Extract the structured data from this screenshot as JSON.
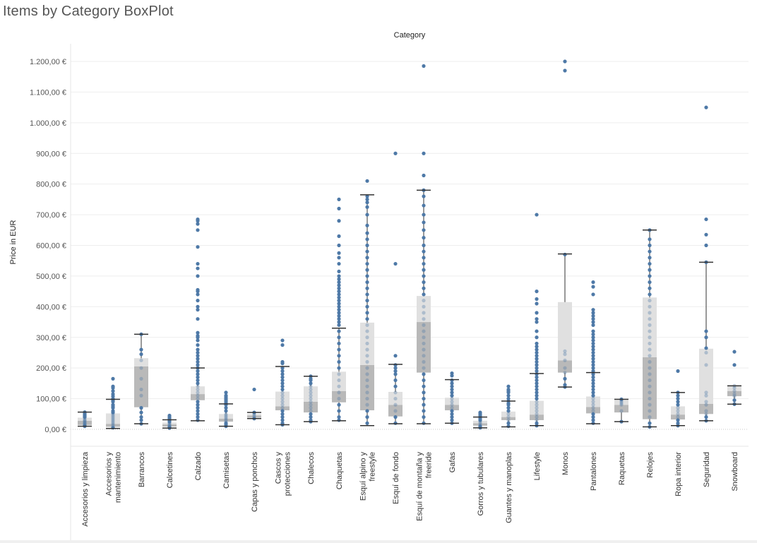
{
  "page": {
    "title": "Items by Category BoxPlot"
  },
  "chart_data": {
    "type": "boxplot",
    "title": "Items by Category BoxPlot",
    "column_header": "Category",
    "ylabel": "Price in EUR",
    "ylim": [
      0,
      1260
    ],
    "yticks": [
      0,
      100,
      200,
      300,
      400,
      500,
      600,
      700,
      800,
      900,
      1000,
      1100,
      1200
    ],
    "ytick_labels": [
      "0,00 €",
      "100,00 €",
      "200,00 €",
      "300,00 €",
      "400,00 €",
      "500,00 €",
      "600,00 €",
      "700,00 €",
      "800,00 €",
      "900,00 €",
      "1.000,00 €",
      "1.100,00 €",
      "1.200,00 €"
    ],
    "grid": true,
    "colors": {
      "points": "#4e79a7",
      "box_outer": "#e0e0e0",
      "box_inner": "#b9b9b9",
      "whisker": "#333333",
      "grid": "#eeeeee"
    },
    "categories": [
      {
        "label": [
          "Accesorios y limpieza"
        ],
        "min": 10,
        "q1": 14,
        "median": 28,
        "q3": 38,
        "max": 56,
        "points": [
          56,
          52,
          48,
          45,
          42,
          40,
          35,
          30,
          28,
          25,
          22,
          20,
          18,
          15,
          12,
          10
        ]
      },
      {
        "label": [
          "Accesorios y",
          "mantenimiento"
        ],
        "min": 3,
        "q1": 8,
        "median": 18,
        "q3": 52,
        "max": 98,
        "points": [
          165,
          140,
          135,
          125,
          115,
          108,
          100,
          95,
          90,
          80,
          75,
          70,
          60,
          55,
          50,
          45,
          40,
          35,
          30,
          25,
          20,
          15,
          10,
          5
        ]
      },
      {
        "label": [
          "Barrancos"
        ],
        "min": 18,
        "q1": 72,
        "median": 205,
        "q3": 232,
        "max": 310,
        "points": [
          310,
          260,
          245,
          225,
          200,
          165,
          130,
          110,
          70,
          55,
          40,
          30,
          18
        ]
      },
      {
        "label": [
          "Calcetines"
        ],
        "min": 4,
        "q1": 9,
        "median": 16,
        "q3": 22,
        "max": 31,
        "points": [
          45,
          40,
          35,
          31,
          28,
          25,
          22,
          18,
          15,
          12,
          10,
          7,
          4
        ]
      },
      {
        "label": [
          "Calzado"
        ],
        "min": 28,
        "q1": 95,
        "median": 115,
        "q3": 140,
        "max": 200,
        "points": [
          685,
          680,
          670,
          650,
          595,
          540,
          525,
          500,
          455,
          450,
          440,
          420,
          400,
          390,
          360,
          315,
          305,
          300,
          290,
          275,
          260,
          250,
          240,
          230,
          220,
          210,
          200,
          190,
          180,
          170,
          160,
          150,
          140,
          130,
          120,
          110,
          100,
          90,
          80,
          70,
          60,
          50,
          40,
          30
        ]
      },
      {
        "label": [
          "Camisetas"
        ],
        "min": 10,
        "q1": 25,
        "median": 35,
        "q3": 50,
        "max": 83,
        "points": [
          120,
          110,
          105,
          100,
          95,
          90,
          85,
          80,
          70,
          60,
          50,
          45,
          40,
          35,
          30,
          25,
          20,
          15,
          10
        ]
      },
      {
        "label": [
          "Capas y ponchos"
        ],
        "min": 35,
        "q1": 38,
        "median": 45,
        "q3": 50,
        "max": 55,
        "points": [
          130,
          55,
          50,
          45,
          40,
          35
        ]
      },
      {
        "label": [
          "Cascos y",
          "protecciones"
        ],
        "min": 15,
        "q1": 62,
        "median": 75,
        "q3": 123,
        "max": 205,
        "points": [
          290,
          275,
          220,
          215,
          200,
          190,
          180,
          170,
          160,
          150,
          140,
          130,
          120,
          110,
          100,
          90,
          80,
          70,
          60,
          50,
          40,
          30,
          20,
          15
        ]
      },
      {
        "label": [
          "Chalecos"
        ],
        "min": 25,
        "q1": 55,
        "median": 90,
        "q3": 140,
        "max": 173,
        "points": [
          173,
          165,
          160,
          150,
          140,
          130,
          120,
          110,
          100,
          90,
          80,
          70,
          60,
          50,
          40,
          30,
          25
        ]
      },
      {
        "label": [
          "Chaquetas"
        ],
        "min": 28,
        "q1": 88,
        "median": 125,
        "q3": 188,
        "max": 330,
        "points": [
          750,
          720,
          680,
          630,
          600,
          575,
          560,
          540,
          515,
          500,
          490,
          480,
          470,
          460,
          450,
          440,
          430,
          420,
          410,
          400,
          390,
          380,
          370,
          360,
          350,
          340,
          320,
          300,
          280,
          260,
          240,
          220,
          200,
          180,
          160,
          140,
          120,
          100,
          80,
          60,
          40,
          30
        ]
      },
      {
        "label": [
          "Esquí alpino y",
          "freestyle"
        ],
        "min": 12,
        "q1": 62,
        "median": 210,
        "q3": 348,
        "max": 765,
        "points": [
          810,
          760,
          750,
          740,
          725,
          700,
          665,
          640,
          620,
          600,
          580,
          560,
          540,
          520,
          500,
          480,
          460,
          440,
          420,
          400,
          380,
          360,
          340,
          320,
          300,
          280,
          260,
          240,
          220,
          200,
          180,
          160,
          140,
          120,
          100,
          80,
          60,
          40,
          20
        ]
      },
      {
        "label": [
          "Esquí de fondo"
        ],
        "min": 18,
        "q1": 42,
        "median": 80,
        "q3": 122,
        "max": 212,
        "points": [
          900,
          540,
          240,
          210,
          200,
          190,
          180,
          160,
          140,
          120,
          100,
          80,
          60,
          40,
          20
        ]
      },
      {
        "label": [
          "Esquí de montaña y",
          "freeride"
        ],
        "min": 18,
        "q1": 185,
        "median": 350,
        "q3": 435,
        "max": 780,
        "points": [
          1185,
          900,
          828,
          780,
          760,
          730,
          700,
          675,
          650,
          625,
          600,
          580,
          560,
          540,
          520,
          500,
          480,
          460,
          440,
          420,
          400,
          380,
          360,
          340,
          320,
          300,
          280,
          260,
          240,
          220,
          200,
          180,
          160,
          140,
          120,
          100,
          80,
          60,
          40,
          20
        ]
      },
      {
        "label": [
          "Gafas"
        ],
        "min": 20,
        "q1": 62,
        "median": 80,
        "q3": 103,
        "max": 162,
        "points": [
          183,
          175,
          160,
          150,
          140,
          130,
          120,
          110,
          100,
          90,
          80,
          70,
          60,
          50,
          40,
          30,
          20
        ]
      },
      {
        "label": [
          "Gorros y tubulares"
        ],
        "min": 5,
        "q1": 12,
        "median": 20,
        "q3": 28,
        "max": 40,
        "points": [
          55,
          50,
          45,
          40,
          35,
          30,
          25,
          20,
          15,
          10,
          5
        ]
      },
      {
        "label": [
          "Guantes y manoplas"
        ],
        "min": 8,
        "q1": 30,
        "median": 40,
        "q3": 58,
        "max": 92,
        "points": [
          140,
          130,
          125,
          120,
          110,
          100,
          92,
          85,
          80,
          70,
          60,
          50,
          40,
          30,
          20,
          10
        ]
      },
      {
        "label": [
          "Lifestyle"
        ],
        "min": 12,
        "q1": 30,
        "median": 48,
        "q3": 93,
        "max": 182,
        "points": [
          700,
          450,
          425,
          410,
          380,
          360,
          350,
          320,
          300,
          280,
          270,
          260,
          250,
          240,
          230,
          220,
          210,
          200,
          190,
          180,
          170,
          160,
          150,
          140,
          130,
          120,
          110,
          100,
          90,
          80,
          70,
          60,
          50,
          40,
          30,
          20,
          12
        ]
      },
      {
        "label": [
          "Monos"
        ],
        "min": 138,
        "q1": 185,
        "median": 225,
        "q3": 415,
        "max": 572,
        "points": [
          1200,
          1170,
          570,
          255,
          245,
          225,
          200,
          185,
          165,
          145,
          138
        ]
      },
      {
        "label": [
          "Pantalones"
        ],
        "min": 18,
        "q1": 52,
        "median": 73,
        "q3": 107,
        "max": 185,
        "points": [
          480,
          465,
          440,
          390,
          380,
          370,
          360,
          350,
          340,
          320,
          310,
          300,
          290,
          280,
          270,
          260,
          250,
          240,
          230,
          220,
          210,
          200,
          190,
          180,
          170,
          160,
          150,
          140,
          130,
          120,
          110,
          100,
          90,
          80,
          70,
          60,
          50,
          40,
          30,
          20
        ]
      },
      {
        "label": [
          "Raquetas"
        ],
        "min": 25,
        "q1": 55,
        "median": 80,
        "q3": 95,
        "max": 98,
        "points": [
          98,
          95,
          90,
          85,
          80,
          60,
          25
        ]
      },
      {
        "label": [
          "Relojes"
        ],
        "min": 8,
        "q1": 33,
        "median": 235,
        "q3": 430,
        "max": 650,
        "points": [
          650,
          620,
          600,
          580,
          560,
          540,
          520,
          500,
          480,
          460,
          440,
          420,
          400,
          380,
          360,
          340,
          320,
          300,
          280,
          260,
          240,
          220,
          200,
          180,
          160,
          140,
          120,
          100,
          80,
          60,
          40,
          20,
          8
        ]
      },
      {
        "label": [
          "Ropa interior"
        ],
        "min": 12,
        "q1": 32,
        "median": 48,
        "q3": 75,
        "max": 120,
        "points": [
          190,
          120,
          110,
          100,
          90,
          80,
          70,
          60,
          50,
          40,
          30,
          20,
          12
        ]
      },
      {
        "label": [
          "Seguridad"
        ],
        "min": 28,
        "q1": 50,
        "median": 83,
        "q3": 263,
        "max": 545,
        "points": [
          1050,
          685,
          635,
          600,
          545,
          320,
          300,
          265,
          250,
          210,
          120,
          110,
          90,
          80,
          60,
          50,
          40,
          28
        ]
      },
      {
        "label": [
          "Snowboard"
        ],
        "min": 82,
        "q1": 108,
        "median": 125,
        "q3": 142,
        "max": 142,
        "points": [
          253,
          210,
          142,
          135,
          125,
          115,
          108,
          95,
          82
        ]
      }
    ]
  }
}
